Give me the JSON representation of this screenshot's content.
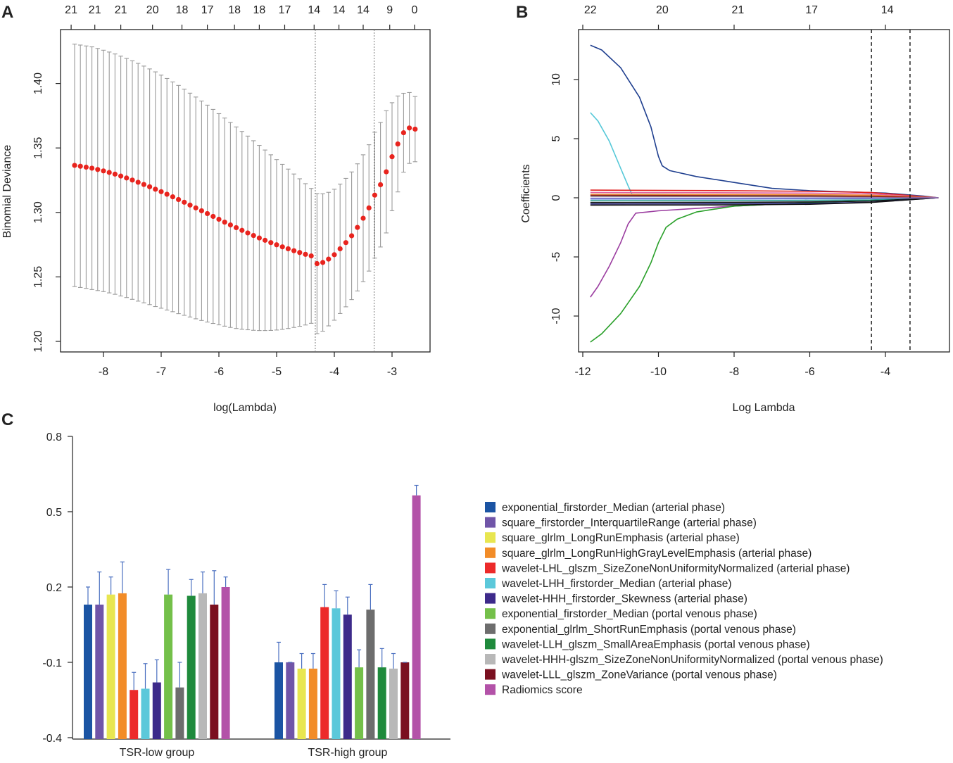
{
  "panels": [
    {
      "letter": "A",
      "chart_data": {
        "type": "scatter",
        "title": "",
        "xlabel": "log(Lambda)",
        "ylabel": "Binomial Deviance",
        "xlim": [
          -8.6,
          -2.5
        ],
        "ylim": [
          1.2,
          1.43
        ],
        "xticks": [
          "-8",
          "-7",
          "-6",
          "-5",
          "-4",
          "-3"
        ],
        "xtick_values": [
          -8,
          -7,
          -6,
          -5,
          -4,
          -3
        ],
        "yticks": [
          "1.20",
          "1.25",
          "1.30",
          "1.35",
          "1.40"
        ],
        "ytick_values": [
          1.2,
          1.25,
          1.3,
          1.35,
          1.4
        ],
        "top_labels": [
          "21",
          "21",
          "21",
          "20",
          "18",
          "17",
          "18",
          "18",
          "17",
          "14",
          "14",
          "14",
          "9",
          "0"
        ],
        "top_label_positions": [
          -8.56,
          -8.15,
          -7.7,
          -7.15,
          -6.64,
          -6.2,
          -5.73,
          -5.3,
          -4.86,
          -4.35,
          -3.92,
          -3.5,
          -3.04,
          -2.61
        ],
        "vlines": [
          -4.33,
          -3.31
        ],
        "series": [
          {
            "name": "cv mean",
            "color": "#e8241e",
            "x": [
              -8.5,
              -8.4,
              -8.3,
              -8.2,
              -8.1,
              -8.0,
              -7.9,
              -7.8,
              -7.7,
              -7.6,
              -7.5,
              -7.4,
              -7.3,
              -7.2,
              -7.1,
              -7.0,
              -6.9,
              -6.8,
              -6.7,
              -6.6,
              -6.5,
              -6.4,
              -6.3,
              -6.2,
              -6.1,
              -6.0,
              -5.9,
              -5.8,
              -5.7,
              -5.6,
              -5.5,
              -5.4,
              -5.3,
              -5.2,
              -5.1,
              -5.0,
              -4.9,
              -4.8,
              -4.7,
              -4.6,
              -4.5,
              -4.4,
              -4.3,
              -4.2,
              -4.1,
              -4.0,
              -3.9,
              -3.8,
              -3.7,
              -3.6,
              -3.5,
              -3.4,
              -3.3,
              -3.2,
              -3.1,
              -3.0,
              -2.9,
              -2.8,
              -2.7,
              -2.6
            ],
            "mean": [
              1.3365,
              1.3358,
              1.3351,
              1.3343,
              1.3333,
              1.3322,
              1.331,
              1.3297,
              1.3282,
              1.3267,
              1.3251,
              1.3234,
              1.3217,
              1.3199,
              1.318,
              1.3161,
              1.3141,
              1.3121,
              1.31,
              1.3079,
              1.3057,
              1.3035,
              1.3013,
              1.2991,
              1.2969,
              1.2947,
              1.2925,
              1.2903,
              1.2882,
              1.2861,
              1.2841,
              1.2821,
              1.2802,
              1.2784,
              1.2766,
              1.2749,
              1.2733,
              1.2718,
              1.2703,
              1.2689,
              1.2675,
              1.2663,
              1.2603,
              1.2612,
              1.2638,
              1.2672,
              1.2718,
              1.2766,
              1.2819,
              1.2884,
              1.2955,
              1.3035,
              1.3134,
              1.3215,
              1.3315,
              1.3432,
              1.3531,
              1.3618,
              1.3655,
              1.3646
            ],
            "upper": [
              1.4305,
              1.4298,
              1.4291,
              1.4284,
              1.4272,
              1.4258,
              1.4244,
              1.4229,
              1.4212,
              1.4194,
              1.4176,
              1.4156,
              1.4135,
              1.4113,
              1.409,
              1.4065,
              1.4039,
              1.4012,
              1.3985,
              1.3956,
              1.3925,
              1.3895,
              1.3864,
              1.3832,
              1.3799,
              1.3766,
              1.3732,
              1.3698,
              1.3663,
              1.3628,
              1.3592,
              1.3556,
              1.352,
              1.3484,
              1.3447,
              1.341,
              1.3373,
              1.3336,
              1.3298,
              1.3261,
              1.3223,
              1.3186,
              1.3146,
              1.3145,
              1.3156,
              1.318,
              1.322,
              1.3264,
              1.3314,
              1.3377,
              1.3447,
              1.3525,
              1.3622,
              1.3698,
              1.3789,
              1.3851,
              1.3903,
              1.3924,
              1.393,
              1.3899
            ],
            "lower": [
              1.2425,
              1.2418,
              1.2411,
              1.2402,
              1.2394,
              1.2386,
              1.2376,
              1.2365,
              1.2352,
              1.234,
              1.2326,
              1.2312,
              1.2299,
              1.2285,
              1.227,
              1.2257,
              1.2243,
              1.223,
              1.2215,
              1.2202,
              1.2189,
              1.2175,
              1.2162,
              1.215,
              1.2139,
              1.2128,
              1.2118,
              1.2108,
              1.21,
              1.2094,
              1.209,
              1.2086,
              1.2084,
              1.2084,
              1.2085,
              1.2088,
              1.2093,
              1.21,
              1.2108,
              1.2117,
              1.2127,
              1.214,
              1.206,
              1.2079,
              1.212,
              1.2164,
              1.2216,
              1.2268,
              1.2324,
              1.2391,
              1.2463,
              1.2545,
              1.2646,
              1.2732,
              1.2841,
              1.3013,
              1.3159,
              1.3312,
              1.338,
              1.3393
            ]
          }
        ]
      }
    },
    {
      "letter": "B",
      "chart_data": {
        "type": "line",
        "title": "",
        "xlabel": "Log Lambda",
        "ylabel": "Coefficients",
        "xlim": [
          -12,
          -2.5
        ],
        "ylim": [
          -13,
          14
        ],
        "xticks": [
          "-12",
          "-10",
          "-8",
          "-6",
          "-4"
        ],
        "xtick_values": [
          -12,
          -10,
          -8,
          -6,
          -4
        ],
        "yticks": [
          "-10",
          "-5",
          "0",
          "5",
          "10"
        ],
        "ytick_values": [
          -10,
          -5,
          0,
          5,
          10
        ],
        "top_labels": [
          "22",
          "20",
          "21",
          "17",
          "14"
        ],
        "top_label_positions": [
          -11.8,
          -9.9,
          -7.9,
          -5.95,
          -3.95
        ],
        "top_tick_values": [
          -12,
          -10,
          -8,
          -6,
          -4
        ],
        "vlines": [
          -4.37,
          -3.35
        ],
        "series": [
          {
            "name": "dark blue",
            "color": "#1f3f8f",
            "x": [
              -11.8,
              -11.5,
              -11,
              -10.5,
              -10.2,
              -10,
              -9.9,
              -9.7,
              -9,
              -8,
              -7,
              -6,
              -5,
              -4,
              -3,
              -2.6
            ],
            "y": [
              12.9,
              12.5,
              11.0,
              8.5,
              6.0,
              3.5,
              2.7,
              2.3,
              1.8,
              1.3,
              0.8,
              0.6,
              0.5,
              0.4,
              0.15,
              0
            ]
          },
          {
            "name": "cyan",
            "color": "#55c8d8",
            "x": [
              -11.8,
              -11.6,
              -11.3,
              -11.0,
              -10.8,
              -10.7,
              -10,
              -8,
              -6,
              -4,
              -2.6
            ],
            "y": [
              7.2,
              6.5,
              4.8,
              2.5,
              1.0,
              0.3,
              0.3,
              0.25,
              0.2,
              0.1,
              0
            ]
          },
          {
            "name": "purple",
            "color": "#9b3da0",
            "x": [
              -11.8,
              -11.6,
              -11.3,
              -11.0,
              -10.8,
              -10.6,
              -10.3,
              -10,
              -9,
              -8,
              -6,
              -4,
              -2.6
            ],
            "y": [
              -8.4,
              -7.5,
              -5.8,
              -3.8,
              -2.2,
              -1.3,
              -1.2,
              -1.1,
              -0.9,
              -0.7,
              -0.4,
              -0.2,
              0
            ]
          },
          {
            "name": "green",
            "color": "#2aa02a",
            "x": [
              -11.8,
              -11.5,
              -11,
              -10.5,
              -10.2,
              -10,
              -9.8,
              -9.5,
              -9,
              -8,
              -6,
              -4,
              -2.6
            ],
            "y": [
              -12.2,
              -11.5,
              -9.8,
              -7.5,
              -5.5,
              -3.8,
              -2.5,
              -1.8,
              -1.2,
              -0.7,
              -0.4,
              -0.2,
              0
            ]
          },
          {
            "name": "red 1",
            "color": "#e02020",
            "x": [
              -11.8,
              -8,
              -6,
              -4.4,
              -2.6
            ],
            "y": [
              0.65,
              0.6,
              0.55,
              0.45,
              0
            ]
          },
          {
            "name": "pink",
            "color": "#e060a0",
            "x": [
              -11.8,
              -8,
              -6,
              -4.4,
              -2.6
            ],
            "y": [
              0.45,
              0.42,
              0.4,
              0.33,
              0
            ]
          },
          {
            "name": "orange",
            "color": "#f08a2a",
            "x": [
              -11.8,
              -8,
              -6,
              -4.4,
              -2.6
            ],
            "y": [
              0.3,
              0.28,
              0.26,
              0.22,
              0
            ]
          },
          {
            "name": "grey",
            "color": "#888888",
            "x": [
              -11.8,
              -8,
              -6,
              -4.4,
              -2.6
            ],
            "y": [
              0.12,
              0.11,
              0.1,
              0.08,
              0
            ]
          },
          {
            "name": "light blue",
            "color": "#4a7bd0",
            "x": [
              -11.8,
              -8,
              -6,
              -4.4,
              -2.6
            ],
            "y": [
              -0.1,
              -0.1,
              -0.09,
              -0.07,
              0
            ]
          },
          {
            "name": "teal",
            "color": "#2a9d8f",
            "x": [
              -11.8,
              -8,
              -6,
              -4.4,
              -2.6
            ],
            "y": [
              -0.25,
              -0.24,
              -0.22,
              -0.18,
              0
            ]
          },
          {
            "name": "black 1",
            "color": "#111111",
            "x": [
              -11.8,
              -8,
              -6,
              -4.4,
              -2.6
            ],
            "y": [
              -0.4,
              -0.38,
              -0.35,
              -0.28,
              0
            ]
          },
          {
            "name": "navy",
            "color": "#30308a",
            "x": [
              -11.8,
              -8,
              -6,
              -4.4,
              -2.6
            ],
            "y": [
              -0.52,
              -0.5,
              -0.47,
              -0.38,
              0
            ]
          },
          {
            "name": "black 2",
            "color": "#111111",
            "x": [
              -11.8,
              -8,
              -6,
              -4.4,
              -2.6
            ],
            "y": [
              -0.62,
              -0.6,
              -0.55,
              -0.4,
              0
            ]
          },
          {
            "name": "dark red",
            "color": "#8a1a1a",
            "x": [
              -11.8,
              -8,
              -6,
              -4.4,
              -2.6
            ],
            "y": [
              0.2,
              0.18,
              0.16,
              0.12,
              0
            ]
          },
          {
            "name": "light purple",
            "color": "#9a7fd0",
            "x": [
              -11.8,
              -8,
              -6,
              -4.4,
              -2.6
            ],
            "y": [
              -0.03,
              -0.03,
              -0.02,
              -0.02,
              0
            ]
          }
        ]
      }
    },
    {
      "letter": "C",
      "chart_data": {
        "type": "bar",
        "title": "",
        "xlabel": "",
        "ylabel": "",
        "ylim": [
          -0.4,
          0.8
        ],
        "yticks": [
          "-0.4",
          "-0.1",
          "0.2",
          "0.5",
          "0.8"
        ],
        "ytick_values": [
          -0.4,
          -0.1,
          0.2,
          0.5,
          0.8
        ],
        "categories": [
          "TSR-low group",
          "TSR-high group"
        ],
        "series": [
          {
            "name": "exponential_firstorder_Median (arterial phase)",
            "color": "#1b54a3",
            "values": [
              0.13,
              -0.1
            ],
            "errors": [
              0.07,
              0.08
            ]
          },
          {
            "name": "square_firstorder_InterquartileRange (arterial phase)",
            "color": "#7055a8",
            "values": [
              0.13,
              -0.1
            ],
            "errors": [
              0.13,
              0.0
            ]
          },
          {
            "name": "square_glrlm_LongRunEmphasis (arterial phase)",
            "color": "#e8e650",
            "values": [
              0.17,
              -0.125
            ],
            "errors": [
              0.07,
              0.06
            ]
          },
          {
            "name": "square_glrlm_LongRunHighGrayLevelEmphasis (arterial phase)",
            "color": "#f28c28",
            "values": [
              0.175,
              -0.125
            ],
            "errors": [
              0.125,
              0.06
            ]
          },
          {
            "name": "wavelet-LHL_glszm_SizeZoneNonUniformityNormalized (arterial phase)",
            "color": "#ec2a2a",
            "values": [
              -0.21,
              0.12
            ],
            "errors": [
              0.07,
              0.09
            ]
          },
          {
            "name": "wavelet-LHH_firstorder_Median (arterial phase)",
            "color": "#5bc8da",
            "values": [
              -0.205,
              0.115
            ],
            "errors": [
              0.1,
              0.07
            ]
          },
          {
            "name": "wavelet-HHH_firstorder_Skewness (arterial phase)",
            "color": "#3d2a8a",
            "values": [
              -0.18,
              0.09
            ],
            "errors": [
              0.09,
              0.07
            ]
          },
          {
            "name": "exponential_firstorder_Median (portal venous phase)",
            "color": "#74c04a",
            "values": [
              0.17,
              -0.12
            ],
            "errors": [
              0.1,
              0.07
            ]
          },
          {
            "name": "exponential_glrlm_ShortRunEmphasis (portal venous phase)",
            "color": "#6d6d6d",
            "values": [
              -0.2,
              0.11
            ],
            "errors": [
              0.1,
              0.1
            ]
          },
          {
            "name": "wavelet-LLH_glszm_SmallAreaEmphasis (portal venous phase)",
            "color": "#1f8a3c",
            "values": [
              0.165,
              -0.12
            ],
            "errors": [
              0.065,
              0.075
            ]
          },
          {
            "name": "wavelet-HHH-glszm_SizeZoneNonUniformityNormalized (portal venous phase)",
            "color": "#b8b8b8",
            "values": [
              0.175,
              -0.125
            ],
            "errors": [
              0.085,
              0.06
            ]
          },
          {
            "name": "wavelet-LLL_glszm_ZoneVariance (portal venous phase)",
            "color": "#7a1020",
            "values": [
              0.13,
              -0.1
            ],
            "errors": [
              0.135,
              0.0
            ]
          },
          {
            "name": "Radiomics score",
            "color": "#b352a8",
            "values": [
              0.2,
              0.565
            ],
            "errors": [
              0.04,
              0.04
            ]
          }
        ]
      }
    }
  ]
}
